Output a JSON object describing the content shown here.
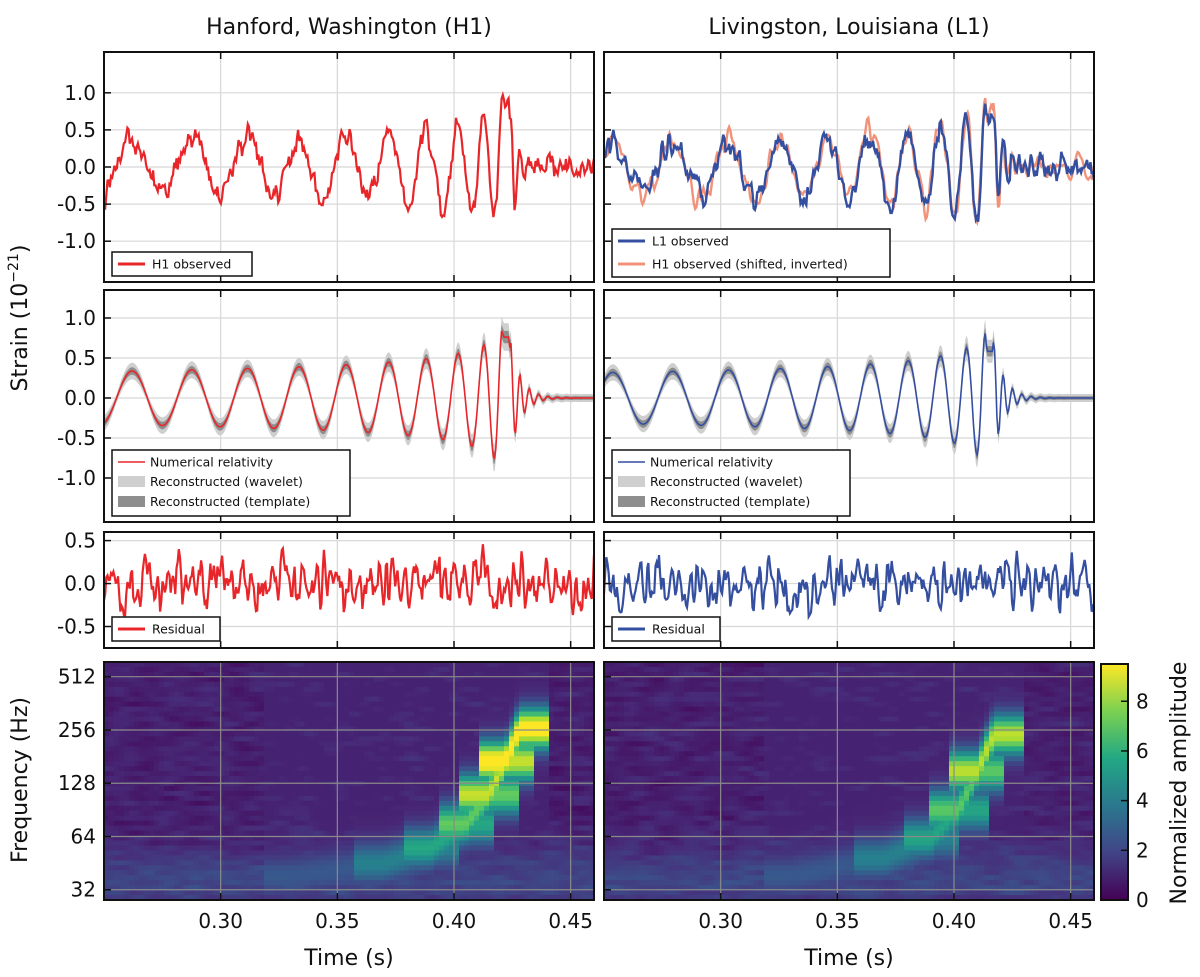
{
  "titles": {
    "left": "Hanford, Washington (H1)",
    "right": "Livingston, Louisiana (L1)"
  },
  "axis_labels": {
    "strain": "Strain (10",
    "strain_exp": "−21",
    "strain_close": ")",
    "frequency": "Frequency (Hz)",
    "time_left": "Time (s)",
    "time_right": "Time (s)",
    "colorbar": "Normalized amplitude"
  },
  "ticks": {
    "time": [
      "0.30",
      "0.35",
      "0.40",
      "0.45"
    ],
    "strain_top": [
      "1.0",
      "0.5",
      "0.0",
      "-0.5",
      "-1.0"
    ],
    "strain_mid": [
      "1.0",
      "0.5",
      "0.0",
      "-0.5",
      "-1.0"
    ],
    "strain_res": [
      "0.5",
      "0.0",
      "-0.5"
    ],
    "freq": [
      "512",
      "256",
      "128",
      "64",
      "32"
    ],
    "colorbar": [
      "8",
      "6",
      "4",
      "2",
      "0"
    ]
  },
  "legends": {
    "h1_observed": "H1 observed",
    "l1_observed": "L1 observed",
    "h1_shifted": "H1 observed (shifted, inverted)",
    "nr": "Numerical relativity",
    "rec_wavelet": "Reconstructed (wavelet)",
    "rec_template": "Reconstructed (template)",
    "residual": "Residual"
  },
  "colors": {
    "h1": "#e8262a",
    "l1": "#344fa0",
    "h1_shifted": "#f0937a",
    "wavelet_band": "#cfcfcf",
    "template_band": "#8e8e8e"
  },
  "chart_data": [
    {
      "type": "line",
      "panel": "H1 observed",
      "xlim": [
        0.25,
        0.46
      ],
      "ylim": [
        -1.55,
        1.55
      ],
      "series": [
        {
          "name": "H1 observed"
        }
      ]
    },
    {
      "type": "line",
      "panel": "L1 observed",
      "xlim": [
        0.25,
        0.46
      ],
      "ylim": [
        -1.55,
        1.55
      ],
      "series": [
        {
          "name": "L1 observed"
        },
        {
          "name": "H1 observed (shifted, inverted)"
        }
      ]
    },
    {
      "type": "line",
      "panel": "H1 reconstruction",
      "xlim": [
        0.25,
        0.46
      ],
      "ylim": [
        -1.55,
        1.55
      ],
      "series": [
        {
          "name": "Numerical relativity"
        },
        {
          "name": "Reconstructed (wavelet)"
        },
        {
          "name": "Reconstructed (template)"
        }
      ]
    },
    {
      "type": "line",
      "panel": "L1 reconstruction",
      "xlim": [
        0.25,
        0.46
      ],
      "ylim": [
        -1.55,
        1.55
      ],
      "series": [
        {
          "name": "Numerical relativity"
        },
        {
          "name": "Reconstructed (wavelet)"
        },
        {
          "name": "Reconstructed (template)"
        }
      ]
    },
    {
      "type": "line",
      "panel": "H1 residual",
      "xlim": [
        0.25,
        0.46
      ],
      "ylim": [
        -0.75,
        0.6
      ],
      "series": [
        {
          "name": "Residual"
        }
      ]
    },
    {
      "type": "line",
      "panel": "L1 residual",
      "xlim": [
        0.25,
        0.46
      ],
      "ylim": [
        -0.75,
        0.6
      ],
      "series": [
        {
          "name": "Residual"
        }
      ]
    },
    {
      "type": "heatmap",
      "panel": "H1 time-frequency",
      "xlim": [
        0.25,
        0.46
      ],
      "ylim_hz": [
        28,
        620
      ],
      "y_scale": "log2",
      "chirp": [
        {
          "t": 0.33,
          "f": 38
        },
        {
          "t": 0.37,
          "f": 45
        },
        {
          "t": 0.39,
          "f": 55
        },
        {
          "t": 0.405,
          "f": 75
        },
        {
          "t": 0.415,
          "f": 110
        },
        {
          "t": 0.422,
          "f": 170
        },
        {
          "t": 0.428,
          "f": 260
        }
      ],
      "peak_amplitude": 9
    },
    {
      "type": "heatmap",
      "panel": "L1 time-frequency",
      "xlim": [
        0.25,
        0.46
      ],
      "ylim_hz": [
        28,
        620
      ],
      "y_scale": "log2",
      "chirp": [
        {
          "t": 0.33,
          "f": 38
        },
        {
          "t": 0.37,
          "f": 48
        },
        {
          "t": 0.39,
          "f": 62
        },
        {
          "t": 0.402,
          "f": 90
        },
        {
          "t": 0.41,
          "f": 150
        },
        {
          "t": 0.417,
          "f": 240
        }
      ],
      "peak_amplitude": 7
    },
    {
      "type": "colorbar",
      "label": "Normalized amplitude",
      "range": [
        0,
        9.5
      ]
    }
  ]
}
